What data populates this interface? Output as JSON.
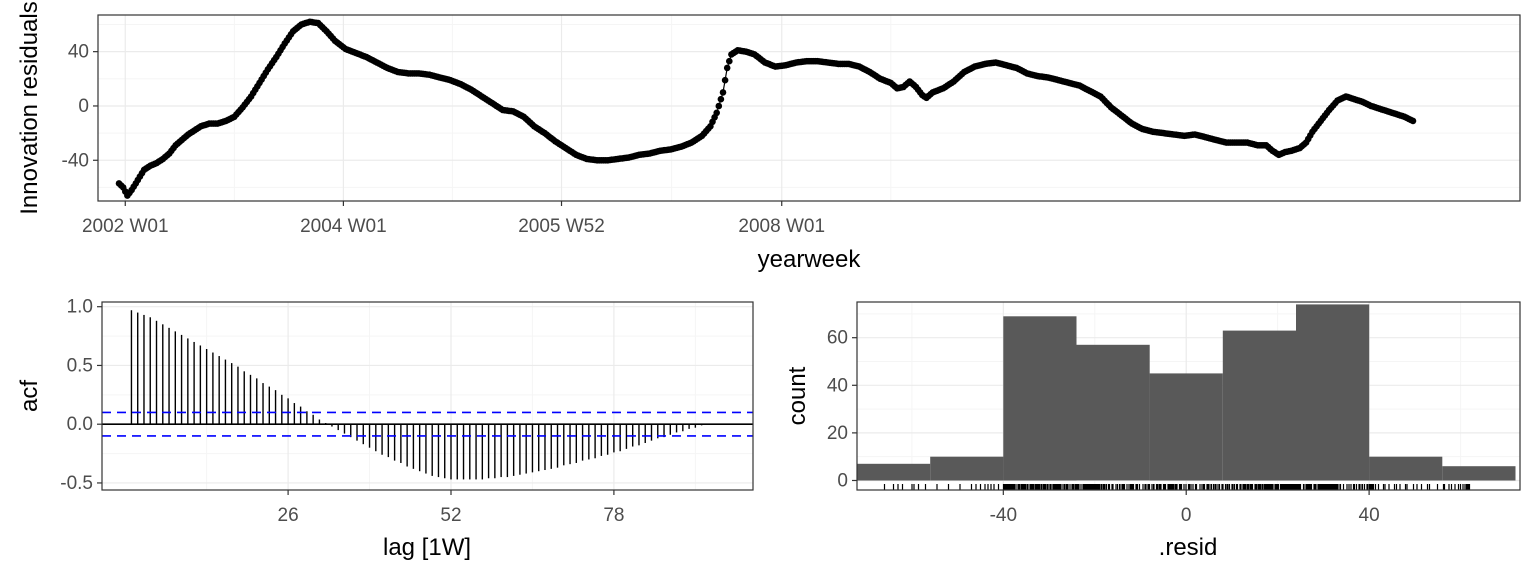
{
  "chart_data": [
    {
      "type": "line",
      "points": true,
      "ylabel": "Innovation residuals",
      "xlabel": "yearweek",
      "x_ticks": [
        "2002 W01",
        "2004 W01",
        "2005 W52",
        "2008 W01"
      ],
      "y_ticks": [
        -40,
        0,
        40
      ],
      "ylim": [
        -70,
        67
      ],
      "grid": true,
      "series": [
        {
          "x_unit": "week index from 2002 W01",
          "keypoints": [
            [
              -3,
              -57
            ],
            [
              -1,
              -60
            ],
            [
              1,
              -66
            ],
            [
              3,
              -62
            ],
            [
              5,
              -57
            ],
            [
              7,
              -52
            ],
            [
              9,
              -47
            ],
            [
              12,
              -44
            ],
            [
              15,
              -42
            ],
            [
              18,
              -39
            ],
            [
              21,
              -35
            ],
            [
              24,
              -29
            ],
            [
              27,
              -25
            ],
            [
              30,
              -21
            ],
            [
              33,
              -18
            ],
            [
              36,
              -15
            ],
            [
              40,
              -13
            ],
            [
              44,
              -13
            ],
            [
              48,
              -11
            ],
            [
              52,
              -8
            ],
            [
              56,
              -1
            ],
            [
              60,
              7
            ],
            [
              64,
              17
            ],
            [
              68,
              27
            ],
            [
              72,
              36
            ],
            [
              76,
              46
            ],
            [
              80,
              55
            ],
            [
              84,
              60
            ],
            [
              88,
              62
            ],
            [
              92,
              61
            ],
            [
              96,
              55
            ],
            [
              100,
              48
            ],
            [
              105,
              42
            ],
            [
              110,
              39
            ],
            [
              115,
              36
            ],
            [
              120,
              32
            ],
            [
              125,
              28
            ],
            [
              130,
              25
            ],
            [
              135,
              24
            ],
            [
              140,
              24
            ],
            [
              145,
              23
            ],
            [
              150,
              21
            ],
            [
              155,
              19
            ],
            [
              160,
              16
            ],
            [
              165,
              12
            ],
            [
              170,
              7
            ],
            [
              175,
              2
            ],
            [
              180,
              -3
            ],
            [
              185,
              -4
            ],
            [
              190,
              -8
            ],
            [
              195,
              -15
            ],
            [
              200,
              -20
            ],
            [
              205,
              -26
            ],
            [
              210,
              -31
            ],
            [
              215,
              -36
            ],
            [
              220,
              -39
            ],
            [
              225,
              -40
            ],
            [
              230,
              -40
            ],
            [
              235,
              -39
            ],
            [
              240,
              -38
            ],
            [
              245,
              -36
            ],
            [
              250,
              -35
            ],
            [
              255,
              -33
            ],
            [
              260,
              -32
            ],
            [
              265,
              -30
            ],
            [
              270,
              -27
            ],
            [
              275,
              -22
            ],
            [
              279,
              -15
            ],
            [
              282,
              -5
            ],
            [
              285,
              10
            ],
            [
              287,
              28
            ],
            [
              289,
              38
            ],
            [
              292,
              41
            ],
            [
              296,
              40
            ],
            [
              300,
              38
            ],
            [
              305,
              32
            ],
            [
              310,
              29
            ],
            [
              315,
              30
            ],
            [
              320,
              32
            ],
            [
              325,
              33
            ],
            [
              330,
              33
            ],
            [
              335,
              32
            ],
            [
              340,
              31
            ],
            [
              345,
              31
            ],
            [
              350,
              29
            ],
            [
              355,
              25
            ],
            [
              360,
              20
            ],
            [
              365,
              17
            ],
            [
              368,
              13
            ],
            [
              371,
              14
            ],
            [
              374,
              18
            ],
            [
              377,
              14
            ],
            [
              380,
              8
            ],
            [
              382,
              6
            ],
            [
              385,
              10
            ],
            [
              390,
              13
            ],
            [
              395,
              18
            ],
            [
              400,
              25
            ],
            [
              405,
              29
            ],
            [
              410,
              31
            ],
            [
              415,
              32
            ],
            [
              420,
              30
            ],
            [
              425,
              28
            ],
            [
              430,
              24
            ],
            [
              435,
              22
            ],
            [
              440,
              21
            ],
            [
              445,
              19
            ],
            [
              450,
              17
            ],
            [
              455,
              15
            ],
            [
              460,
              11
            ],
            [
              465,
              7
            ],
            [
              470,
              -1
            ],
            [
              475,
              -7
            ],
            [
              480,
              -13
            ],
            [
              485,
              -17
            ],
            [
              490,
              -19
            ],
            [
              495,
              -20
            ],
            [
              500,
              -21
            ],
            [
              505,
              -22
            ],
            [
              510,
              -21
            ],
            [
              515,
              -23
            ],
            [
              520,
              -25
            ],
            [
              525,
              -27
            ],
            [
              530,
              -27
            ],
            [
              535,
              -27
            ],
            [
              540,
              -29
            ],
            [
              544,
              -29
            ],
            [
              547,
              -33
            ],
            [
              550,
              -36
            ],
            [
              553,
              -34
            ],
            [
              556,
              -33
            ],
            [
              560,
              -31
            ],
            [
              563,
              -27
            ],
            [
              566,
              -19
            ],
            [
              570,
              -11
            ],
            [
              574,
              -3
            ],
            [
              578,
              4
            ],
            [
              582,
              7
            ],
            [
              586,
              5
            ],
            [
              590,
              3
            ],
            [
              594,
              0
            ],
            [
              598,
              -2
            ],
            [
              602,
              -4
            ],
            [
              606,
              -6
            ],
            [
              610,
              -8
            ],
            [
              614,
              -11
            ]
          ]
        }
      ]
    },
    {
      "type": "bar",
      "subtype": "acf",
      "xlabel": "lag [1W]",
      "ylabel": "acf",
      "x_ticks": [
        26,
        52,
        78
      ],
      "y_ticks": [
        -0.5,
        0.0,
        0.5,
        1.0
      ],
      "ylim": [
        -0.5,
        1.0
      ],
      "xlim": [
        1,
        104
      ],
      "confidence_band": 0.1,
      "series": [
        {
          "name": "acf",
          "lag_start": 1,
          "values": [
            0.97,
            0.95,
            0.93,
            0.91,
            0.88,
            0.85,
            0.82,
            0.79,
            0.76,
            0.73,
            0.7,
            0.67,
            0.64,
            0.61,
            0.58,
            0.55,
            0.52,
            0.49,
            0.45,
            0.42,
            0.39,
            0.35,
            0.32,
            0.29,
            0.25,
            0.22,
            0.18,
            0.15,
            0.11,
            0.08,
            0.04,
            0.01,
            -0.02,
            -0.05,
            -0.08,
            -0.11,
            -0.14,
            -0.17,
            -0.2,
            -0.23,
            -0.26,
            -0.28,
            -0.31,
            -0.33,
            -0.36,
            -0.38,
            -0.4,
            -0.42,
            -0.44,
            -0.45,
            -0.46,
            -0.47,
            -0.47,
            -0.47,
            -0.47,
            -0.47,
            -0.47,
            -0.46,
            -0.46,
            -0.45,
            -0.45,
            -0.44,
            -0.43,
            -0.42,
            -0.41,
            -0.4,
            -0.39,
            -0.38,
            -0.37,
            -0.35,
            -0.34,
            -0.33,
            -0.31,
            -0.3,
            -0.29,
            -0.27,
            -0.26,
            -0.24,
            -0.23,
            -0.21,
            -0.19,
            -0.18,
            -0.16,
            -0.14,
            -0.12,
            -0.11,
            -0.09,
            -0.07,
            -0.06,
            -0.04,
            -0.03,
            -0.01
          ]
        }
      ]
    },
    {
      "type": "bar",
      "subtype": "histogram",
      "xlabel": ".resid",
      "ylabel": "count",
      "x_ticks": [
        -40,
        0,
        40
      ],
      "y_ticks": [
        0,
        20,
        40,
        60
      ],
      "xlim": [
        -72,
        73
      ],
      "ylim": [
        -4,
        75
      ],
      "bins": [
        {
          "start": -72,
          "end": -56,
          "count": 7
        },
        {
          "start": -56,
          "end": -40,
          "count": 10
        },
        {
          "start": -40,
          "end": -24,
          "count": 69
        },
        {
          "start": -24,
          "end": -8,
          "count": 57
        },
        {
          "start": -8,
          "end": 8,
          "count": 45
        },
        {
          "start": 8,
          "end": 24,
          "count": 63
        },
        {
          "start": 24,
          "end": 40,
          "count": 74
        },
        {
          "start": 40,
          "end": 56,
          "count": 10
        },
        {
          "start": 56,
          "end": 72,
          "count": 6
        }
      ],
      "rug": true
    }
  ],
  "colors": {
    "ink": "#000000",
    "grid_major": "#ebebeb",
    "grid_minor": "#f5f5f5",
    "frame": "#333333",
    "tick_text": "#4d4d4d",
    "bar_fill": "#595959",
    "ci_line": "#0000ff"
  }
}
